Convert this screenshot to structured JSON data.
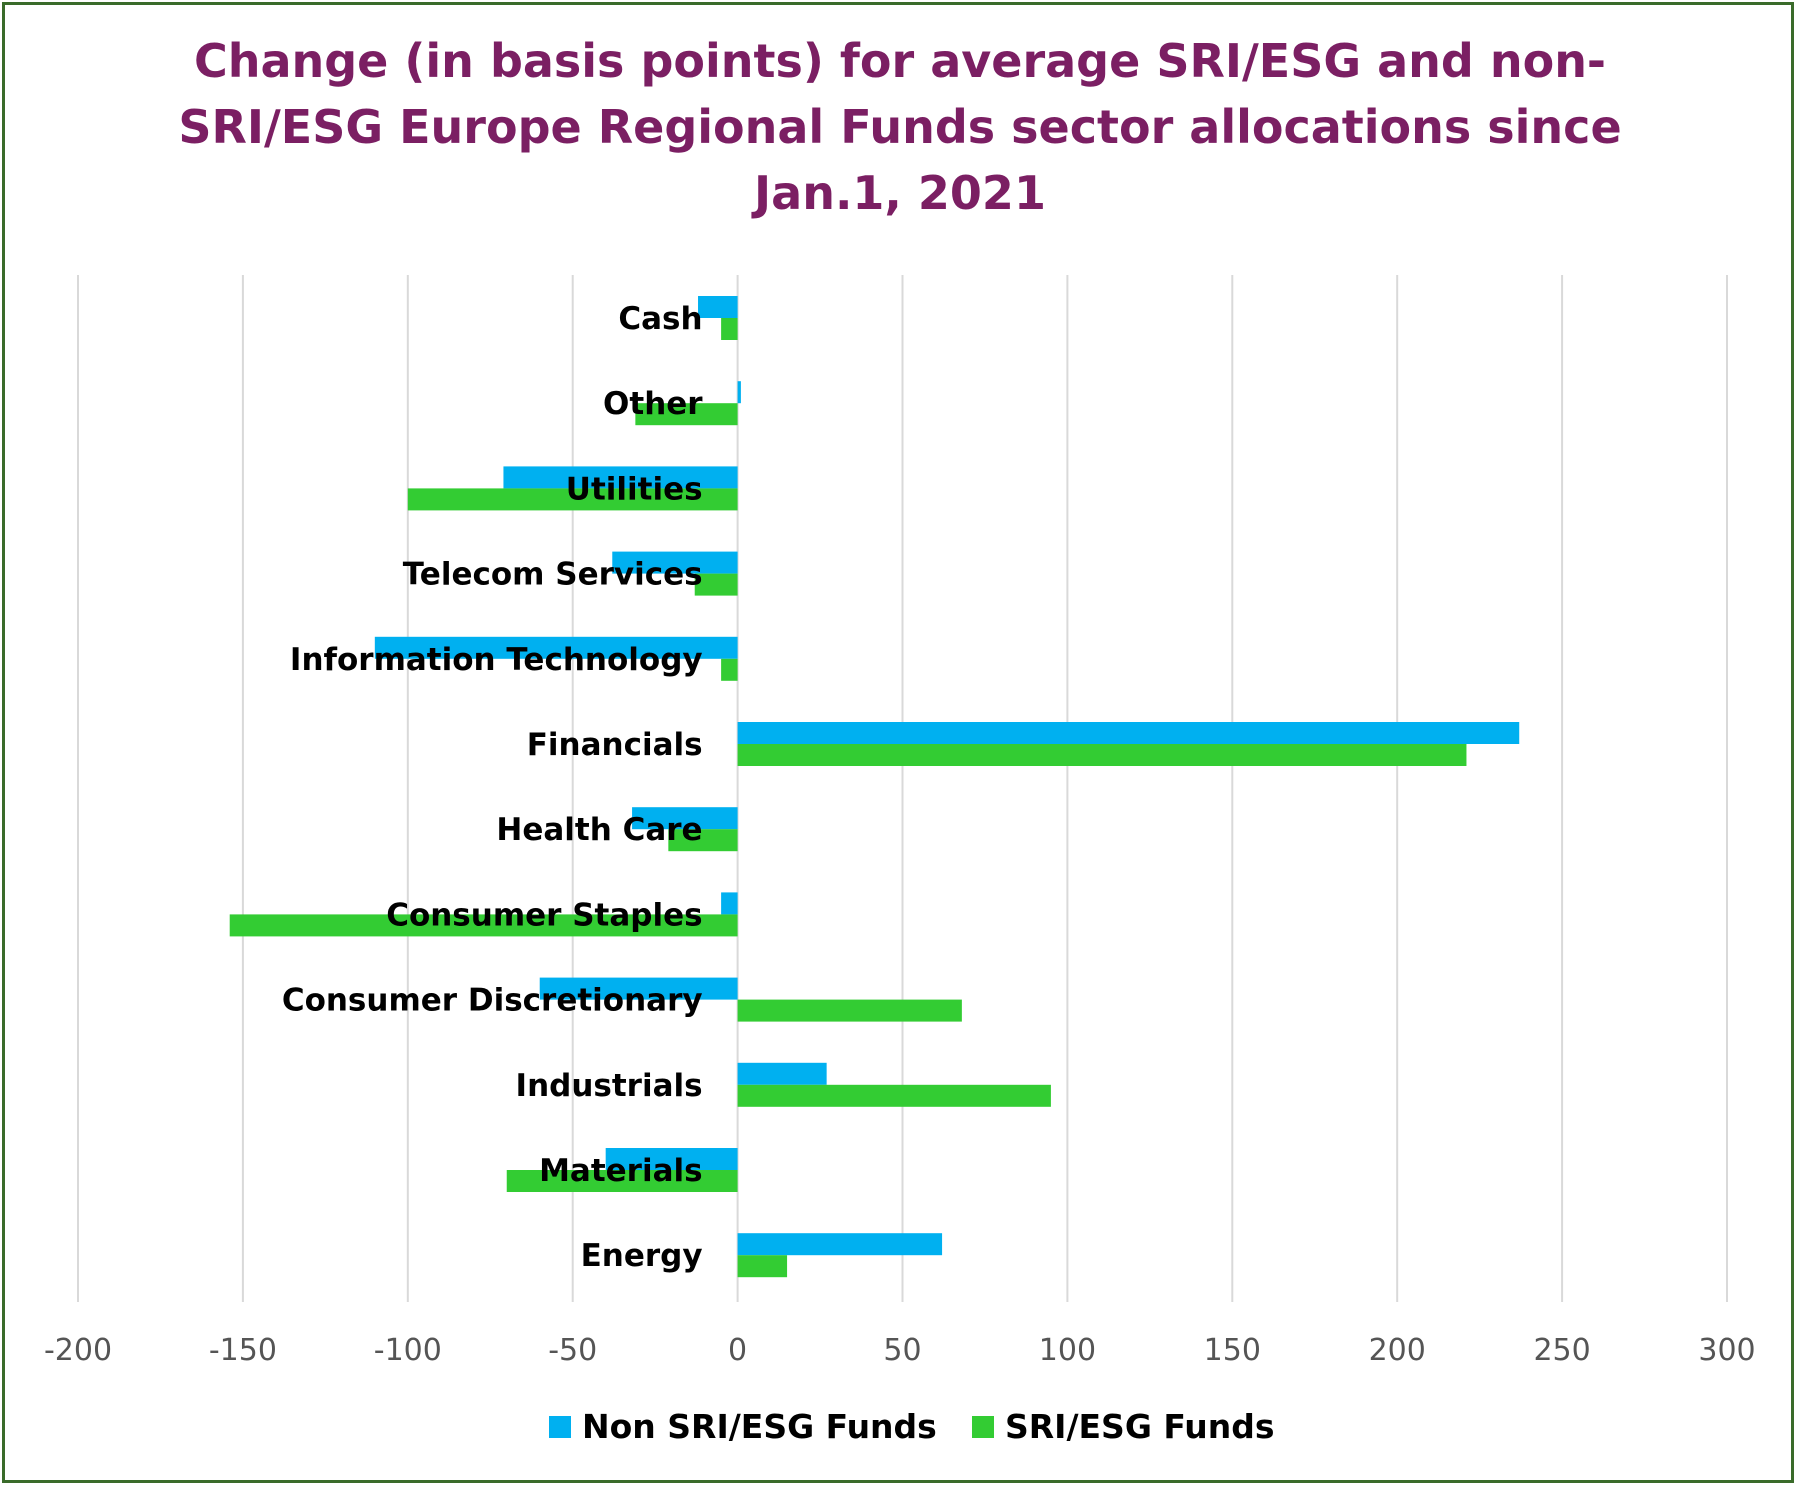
{
  "chart_data": {
    "type": "bar",
    "orientation": "horizontal",
    "title": "Change (in basis points) for average SRI/ESG and non-SRI/ESG Europe Regional Funds sector allocations since Jan.1, 2021",
    "xlim": [
      -200,
      300
    ],
    "xticks": [
      "-200",
      "-150",
      "-100",
      "-50",
      "0",
      "50",
      "100",
      "150",
      "200",
      "250",
      "300"
    ],
    "xtick_values": [
      -200,
      -150,
      -100,
      -50,
      0,
      50,
      100,
      150,
      200,
      250,
      300
    ],
    "grid": "vertical",
    "legend_position": "bottom",
    "categories": [
      "Cash",
      "Other",
      "Utilities",
      "Telecom Services",
      "Information Technology",
      "Financials",
      "Health Care",
      "Consumer Staples",
      "Consumer Discretionary",
      "Industrials",
      "Materials",
      "Energy"
    ],
    "series": [
      {
        "name": "Non SRI/ESG Funds",
        "color": "#00b0f0",
        "values": [
          -12,
          1,
          -71,
          -38,
          -110,
          237,
          -32,
          -5,
          -60,
          27,
          -40,
          62
        ]
      },
      {
        "name": "SRI/ESG Funds",
        "color": "#33cc33",
        "values": [
          -5,
          -31,
          -100,
          -13,
          -5,
          221,
          -21,
          -154,
          68,
          95,
          -70,
          15
        ]
      }
    ]
  }
}
